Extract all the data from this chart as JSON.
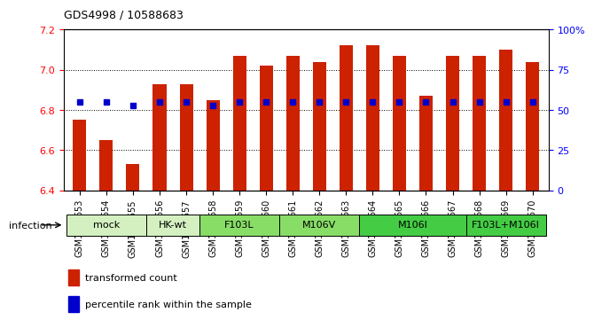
{
  "title": "GDS4998 / 10588683",
  "samples": [
    "GSM1172653",
    "GSM1172654",
    "GSM1172655",
    "GSM1172656",
    "GSM1172657",
    "GSM1172658",
    "GSM1172659",
    "GSM1172660",
    "GSM1172661",
    "GSM1172662",
    "GSM1172663",
    "GSM1172664",
    "GSM1172665",
    "GSM1172666",
    "GSM1172667",
    "GSM1172668",
    "GSM1172669",
    "GSM1172670"
  ],
  "red_values": [
    6.75,
    6.65,
    6.53,
    6.93,
    6.93,
    6.85,
    7.07,
    7.02,
    7.07,
    7.04,
    7.12,
    7.12,
    7.07,
    6.87,
    7.07,
    7.07,
    7.1,
    7.04
  ],
  "blue_percentile": [
    55,
    55,
    53,
    55,
    55,
    53,
    55,
    55,
    55,
    55,
    55,
    55,
    55,
    55,
    55,
    55,
    55,
    55
  ],
  "groups": [
    {
      "label": "mock",
      "start": 0,
      "end": 3
    },
    {
      "label": "HK-wt",
      "start": 3,
      "end": 5
    },
    {
      "label": "F103L",
      "start": 5,
      "end": 8
    },
    {
      "label": "M106V",
      "start": 8,
      "end": 11
    },
    {
      "label": "M106I",
      "start": 11,
      "end": 15
    },
    {
      "label": "F103L+M106I",
      "start": 15,
      "end": 18
    }
  ],
  "group_colors": {
    "mock": "#d4f0c0",
    "HK-wt": "#d4f0c0",
    "F103L": "#88dd66",
    "M106V": "#88dd66",
    "M106I": "#44cc44",
    "F103L+M106I": "#44cc44"
  },
  "ylim_left": [
    6.4,
    7.2
  ],
  "ylim_right": [
    0,
    100
  ],
  "yticks_left": [
    6.4,
    6.6,
    6.8,
    7.0,
    7.2
  ],
  "yticks_right": [
    0,
    25,
    50,
    75,
    100
  ],
  "bar_color": "#cc2200",
  "dot_color": "#0000cc",
  "bar_bottom": 6.4
}
